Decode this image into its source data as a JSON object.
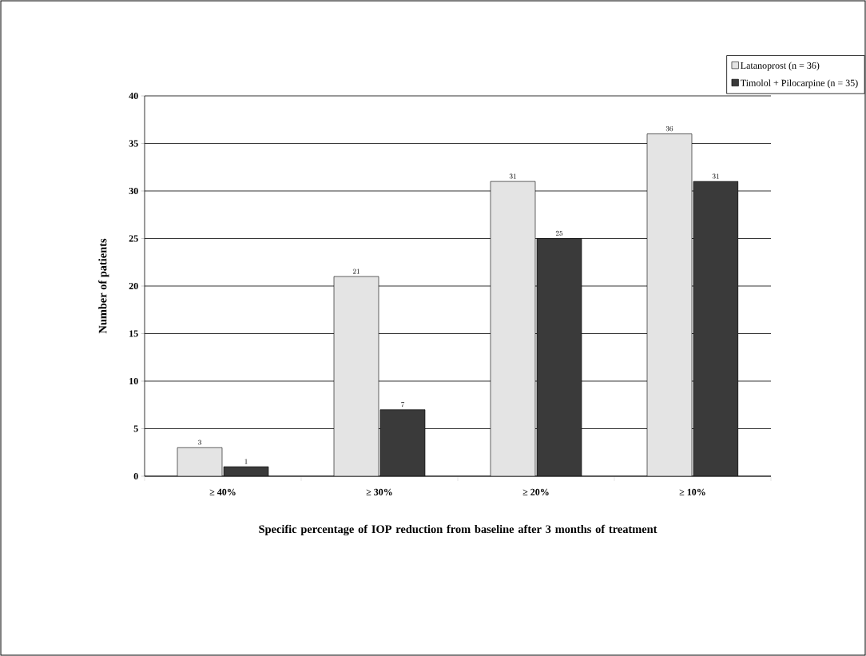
{
  "chart_data": {
    "type": "bar",
    "xlabel": "Specific percentage of IOP reduction from baseline after 3 months of treatment",
    "ylabel": "Number of patients",
    "categories": [
      "≥ 40%",
      "≥ 30%",
      "≥ 20%",
      "≥ 10%"
    ],
    "series": [
      {
        "name": "Latanoprost (n = 36)",
        "color": "#e4e4e4",
        "values": [
          3,
          21,
          31,
          36
        ]
      },
      {
        "name": "Timolol + Pilocarpine (n = 35)",
        "color": "#3a3a3a",
        "values": [
          1,
          7,
          25,
          31
        ]
      }
    ],
    "ylim": [
      0,
      40
    ],
    "yticks": [
      0,
      5,
      10,
      15,
      20,
      25,
      30,
      35,
      40
    ],
    "grid": "y",
    "legend": "top right",
    "data_labels": true
  }
}
